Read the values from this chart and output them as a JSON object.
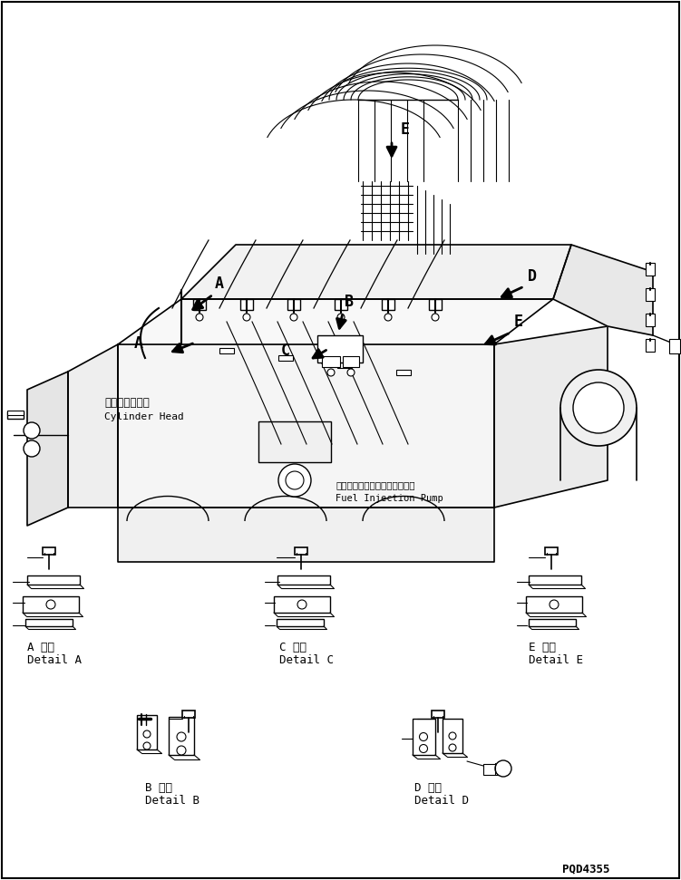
{
  "background_color": "#ffffff",
  "line_color": "#000000",
  "part_number": "PQD4355",
  "labels": {
    "cylinder_head_jp": "シリンダヘッド",
    "cylinder_head_en": "Cylinder Head",
    "fuel_pump_jp": "フェルインジェクションポンプ",
    "fuel_pump_en": "Fuel Injection Pump",
    "detail_a_jp": "A 詳細",
    "detail_a_en": "Detail A",
    "detail_b_jp": "B 詳細",
    "detail_b_en": "Detail B",
    "detail_c_jp": "C 詳細",
    "detail_c_en": "Detail C",
    "detail_d_jp": "D 詳細",
    "detail_d_en": "Detail D",
    "detail_e_jp": "E 詳細",
    "detail_e_en": "Detail E"
  },
  "figsize": [
    7.51,
    9.71
  ],
  "dpi": 100
}
